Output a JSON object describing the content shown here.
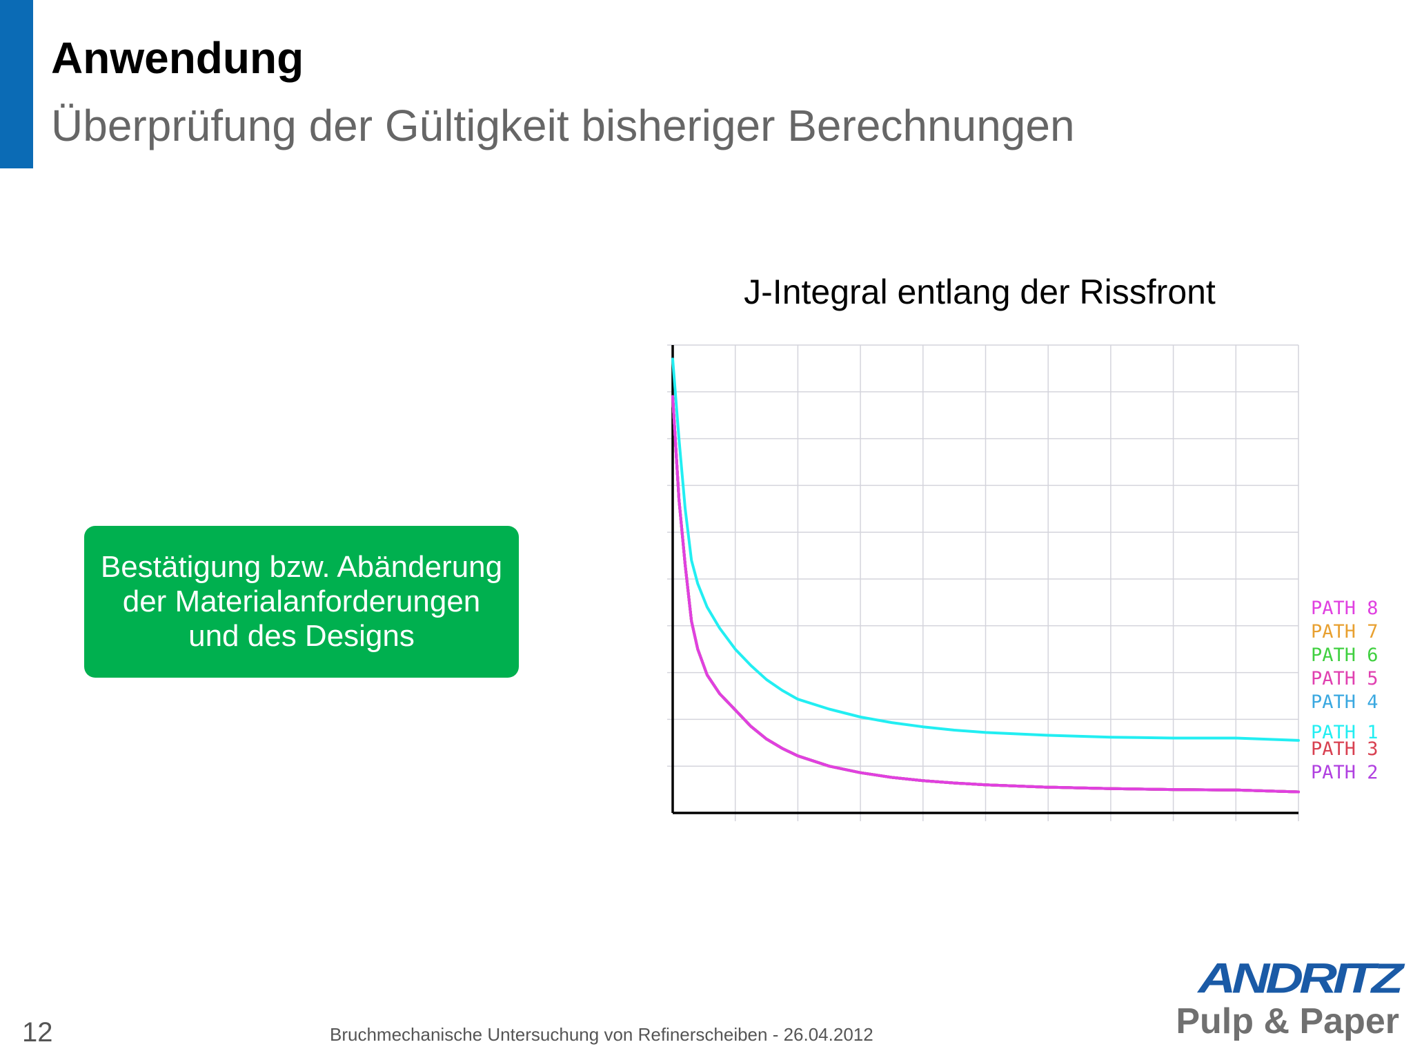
{
  "slide": {
    "title": "Anwendung",
    "subtitle": "Überprüfung der Gültigkeit bisheriger Berechnungen",
    "accent_color": "#0b6bb5"
  },
  "callout": {
    "text": "Bestätigung bzw. Abänderung der Materialanforderungen und des Designs",
    "color": "#00b04f"
  },
  "chart_data": {
    "type": "line",
    "title": "J-Integral entlang der Rissfront",
    "xlabel": "",
    "ylabel": "",
    "grid": true,
    "xlim": [
      0,
      10
    ],
    "ylim": [
      0,
      10
    ],
    "legend_position": "right",
    "x": [
      0,
      0.1,
      0.2,
      0.3,
      0.4,
      0.55,
      0.75,
      1.0,
      1.25,
      1.5,
      1.75,
      2.0,
      2.5,
      3.0,
      3.5,
      4.0,
      4.5,
      5.0,
      6.0,
      7.0,
      8.0,
      9.0,
      10.0
    ],
    "series": [
      {
        "name": "PATH 8",
        "color": "#e040e0",
        "values": [
          8.9,
          6.7,
          5.3,
          4.1,
          3.5,
          2.95,
          2.55,
          2.2,
          1.85,
          1.58,
          1.38,
          1.22,
          1.0,
          0.86,
          0.76,
          0.69,
          0.64,
          0.6,
          0.55,
          0.52,
          0.5,
          0.49,
          0.45
        ]
      },
      {
        "name": "PATH 7",
        "color": "#e8a030",
        "values": [
          8.9,
          6.7,
          5.3,
          4.1,
          3.5,
          2.95,
          2.55,
          2.2,
          1.85,
          1.58,
          1.38,
          1.22,
          1.0,
          0.86,
          0.76,
          0.69,
          0.64,
          0.6,
          0.55,
          0.52,
          0.5,
          0.49,
          0.45
        ]
      },
      {
        "name": "PATH 6",
        "color": "#40d040",
        "values": [
          8.9,
          6.7,
          5.3,
          4.1,
          3.5,
          2.95,
          2.55,
          2.2,
          1.85,
          1.58,
          1.38,
          1.22,
          1.0,
          0.86,
          0.76,
          0.69,
          0.64,
          0.6,
          0.55,
          0.52,
          0.5,
          0.49,
          0.45
        ]
      },
      {
        "name": "PATH 5",
        "color": "#e040b0",
        "values": [
          8.9,
          6.7,
          5.3,
          4.1,
          3.5,
          2.95,
          2.55,
          2.2,
          1.85,
          1.58,
          1.38,
          1.22,
          1.0,
          0.86,
          0.76,
          0.69,
          0.64,
          0.6,
          0.55,
          0.52,
          0.5,
          0.49,
          0.45
        ]
      },
      {
        "name": "PATH 4",
        "color": "#3aa8e0",
        "values": [
          8.9,
          6.7,
          5.3,
          4.1,
          3.5,
          2.95,
          2.55,
          2.2,
          1.85,
          1.58,
          1.38,
          1.22,
          1.0,
          0.86,
          0.76,
          0.69,
          0.64,
          0.6,
          0.55,
          0.52,
          0.5,
          0.49,
          0.45
        ]
      },
      {
        "name": "PATH 1",
        "color": "#22eef2",
        "values": [
          9.7,
          8.0,
          6.5,
          5.4,
          4.9,
          4.4,
          3.95,
          3.5,
          3.15,
          2.85,
          2.62,
          2.43,
          2.22,
          2.05,
          1.93,
          1.84,
          1.77,
          1.72,
          1.66,
          1.62,
          1.6,
          1.6,
          1.55
        ]
      },
      {
        "name": "PATH 3",
        "color": "#d84050",
        "values": [
          8.9,
          6.7,
          5.3,
          4.1,
          3.5,
          2.95,
          2.55,
          2.2,
          1.85,
          1.58,
          1.38,
          1.22,
          1.0,
          0.86,
          0.76,
          0.69,
          0.64,
          0.6,
          0.55,
          0.52,
          0.5,
          0.49,
          0.45
        ]
      },
      {
        "name": "PATH 2",
        "color": "#b040e0",
        "values": [
          8.9,
          6.7,
          5.3,
          4.1,
          3.5,
          2.95,
          2.55,
          2.2,
          1.85,
          1.58,
          1.38,
          1.22,
          1.0,
          0.86,
          0.76,
          0.69,
          0.64,
          0.6,
          0.55,
          0.52,
          0.5,
          0.49,
          0.45
        ]
      }
    ]
  },
  "footer": {
    "page_number": "12",
    "text": "Bruchmechanische Untersuchung von Refinerscheiben - 26.04.2012"
  },
  "logo": {
    "brand": "ANDRITZ",
    "division": "Pulp & Paper"
  }
}
